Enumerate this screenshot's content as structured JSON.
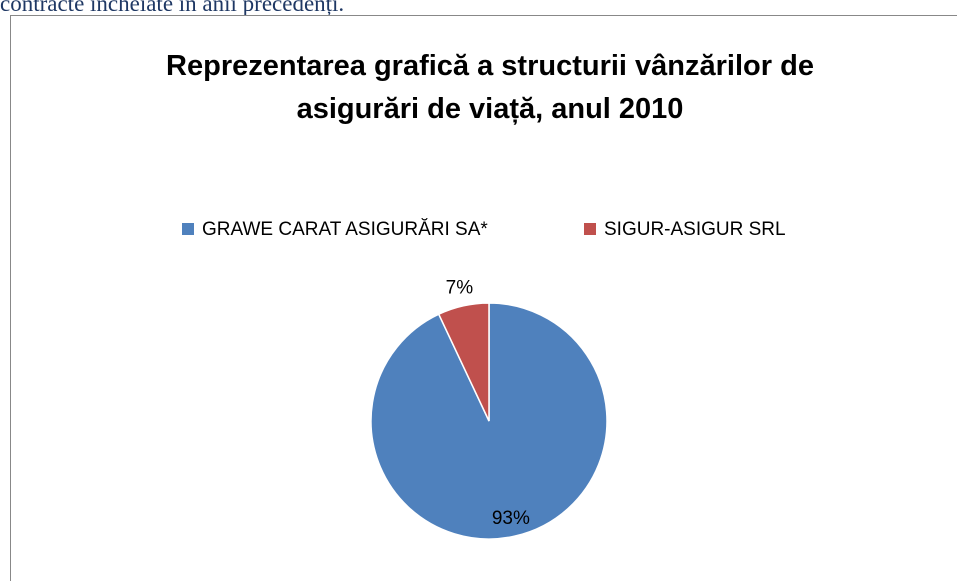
{
  "header_text": "contracte încheiate în anii precedenți.",
  "chart_data": {
    "type": "pie",
    "title": [
      "Reprezentarea grafică a structurii vânzărilor de",
      "asigurări de viață, anul 2010"
    ],
    "categories": [
      "GRAWE CARAT ASIGURĂRI SA*",
      "SIGUR-ASIGUR SRL"
    ],
    "values": [
      93,
      7
    ],
    "value_labels": [
      "93%",
      "7%"
    ],
    "colors": [
      "#4f81bd",
      "#c0504d"
    ],
    "legend": "top"
  }
}
